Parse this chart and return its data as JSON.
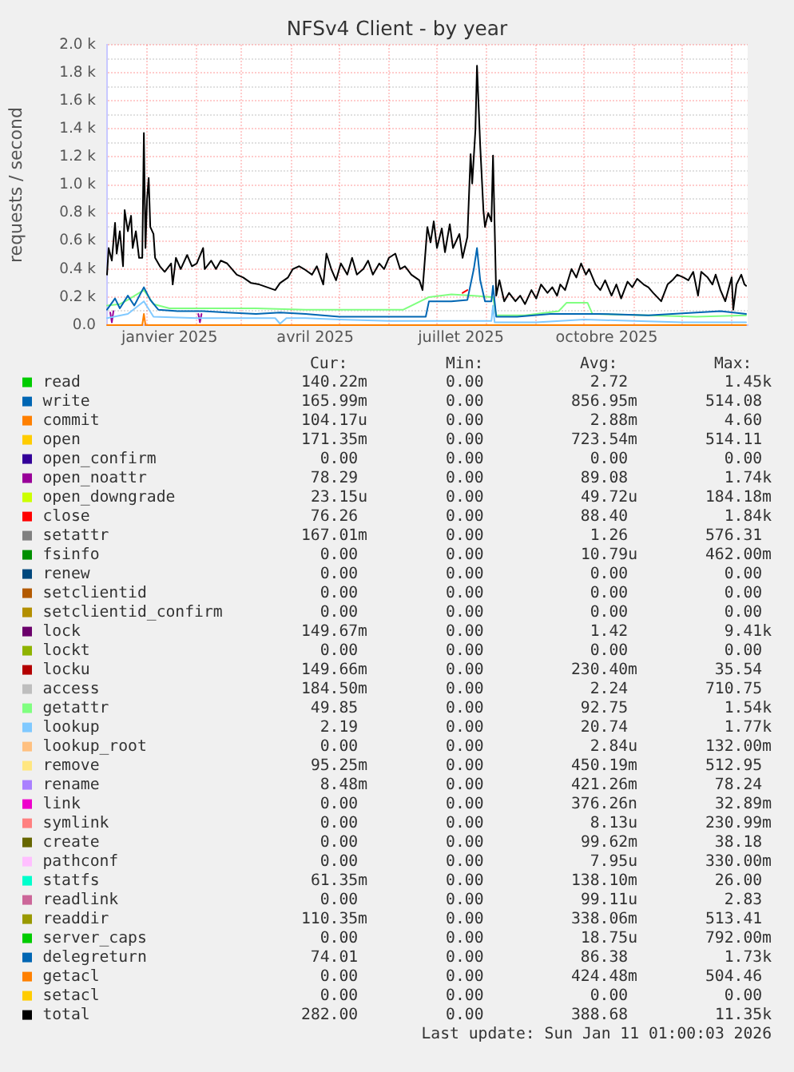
{
  "chart_data": {
    "type": "line",
    "title": "NFSv4 Client - by year",
    "ylabel": "requests / second",
    "xlim": [
      "2024-12-07",
      "2026-01-11"
    ],
    "xticks": [
      {
        "value": "2025-01-01",
        "label": null
      },
      {
        "value": "2025-01-15",
        "label": "janvier 2025"
      },
      {
        "value": "2025-02-01",
        "label": null
      },
      {
        "value": "2025-03-01",
        "label": null
      },
      {
        "value": "2025-04-01",
        "label": null
      },
      {
        "value": "2025-04-16",
        "label": "avril 2025"
      },
      {
        "value": "2025-05-01",
        "label": null
      },
      {
        "value": "2025-06-01",
        "label": null
      },
      {
        "value": "2025-07-01",
        "label": null
      },
      {
        "value": "2025-07-16",
        "label": "juillet 2025"
      },
      {
        "value": "2025-08-01",
        "label": null
      },
      {
        "value": "2025-09-01",
        "label": null
      },
      {
        "value": "2025-10-01",
        "label": null
      },
      {
        "value": "2025-10-15",
        "label": "octobre 2025"
      },
      {
        "value": "2025-11-01",
        "label": null
      },
      {
        "value": "2025-12-01",
        "label": null
      },
      {
        "value": "2026-01-01",
        "label": null
      }
    ],
    "ylim": [
      0,
      2000
    ],
    "yticks": [
      {
        "value": 0,
        "label": "0.0"
      },
      {
        "value": 100,
        "label": null
      },
      {
        "value": 200,
        "label": "0.2 k"
      },
      {
        "value": 300,
        "label": null
      },
      {
        "value": 400,
        "label": "0.4 k"
      },
      {
        "value": 500,
        "label": null
      },
      {
        "value": 600,
        "label": "0.6 k"
      },
      {
        "value": 700,
        "label": null
      },
      {
        "value": 800,
        "label": "0.8 k"
      },
      {
        "value": 900,
        "label": null
      },
      {
        "value": 1000,
        "label": "1.0 k"
      },
      {
        "value": 1100,
        "label": null
      },
      {
        "value": 1200,
        "label": "1.2 k"
      },
      {
        "value": 1300,
        "label": null
      },
      {
        "value": 1400,
        "label": "1.4 k"
      },
      {
        "value": 1500,
        "label": null
      },
      {
        "value": 1600,
        "label": "1.6 k"
      },
      {
        "value": 1700,
        "label": null
      },
      {
        "value": 1800,
        "label": "1.8 k"
      },
      {
        "value": 1900,
        "label": null
      },
      {
        "value": 2000,
        "label": "2.0 k"
      }
    ],
    "grid": true,
    "legend": "bottom",
    "marker": "none",
    "series": [
      {
        "name": "read",
        "color": "#00cc00"
      },
      {
        "name": "write",
        "color": "#0066b3"
      },
      {
        "name": "commit",
        "color": "#ff8000"
      },
      {
        "name": "open",
        "color": "#ffcc00"
      },
      {
        "name": "open_confirm",
        "color": "#330099"
      },
      {
        "name": "open_noattr",
        "color": "#990099",
        "x": [
          "2024-12-09",
          "2024-12-10",
          "2024-12-11",
          "2025-01-20",
          "2025-02-02",
          "2025-02-03",
          "2025-02-04"
        ],
        "values": [
          90,
          20,
          100,
          null,
          80,
          20,
          80
        ]
      },
      {
        "name": "open_downgrade",
        "color": "#ccff00"
      },
      {
        "name": "close",
        "color": "#ff0000",
        "x": [
          "2025-07-17",
          "2025-07-20"
        ],
        "values": [
          230,
          250
        ]
      },
      {
        "name": "setattr",
        "color": "#808080"
      },
      {
        "name": "fsinfo",
        "color": "#008f00"
      },
      {
        "name": "renew",
        "color": "#00487d"
      },
      {
        "name": "setclientid",
        "color": "#b35a00"
      },
      {
        "name": "setclientid_confirm",
        "color": "#b38f00"
      },
      {
        "name": "lock",
        "color": "#6b006b"
      },
      {
        "name": "lockt",
        "color": "#8fb300"
      },
      {
        "name": "locku",
        "color": "#b30000"
      },
      {
        "name": "access",
        "color": "#bebebe"
      },
      {
        "name": "getattr",
        "color": "#80ff80",
        "x": [
          "2024-12-07",
          "2024-12-15",
          "2024-12-20",
          "2024-12-30",
          "2025-01-05",
          "2025-01-15",
          "2025-02-10",
          "2025-03-10",
          "2025-04-10",
          "2025-05-10",
          "2025-06-10",
          "2025-06-26",
          "2025-07-10",
          "2025-07-24",
          "2025-08-05",
          "2025-08-07",
          "2025-08-25",
          "2025-09-15",
          "2025-09-20",
          "2025-10-03",
          "2025-10-06",
          "2025-11-10",
          "2025-12-10",
          "2026-01-10"
        ],
        "values": [
          140,
          150,
          180,
          250,
          150,
          120,
          120,
          120,
          110,
          110,
          110,
          200,
          220,
          210,
          200,
          70,
          70,
          100,
          160,
          160,
          80,
          70,
          60,
          70
        ]
      },
      {
        "name": "lookup",
        "color": "#80c9ff",
        "x": [
          "2024-12-07",
          "2024-12-20",
          "2024-12-30",
          "2025-01-05",
          "2025-02-01",
          "2025-03-01",
          "2025-03-22",
          "2025-03-25",
          "2025-03-29",
          "2025-04-10",
          "2025-05-01",
          "2025-06-01",
          "2025-07-01",
          "2025-08-04",
          "2025-08-05",
          "2025-08-06",
          "2025-09-01",
          "2025-10-01",
          "2025-11-01",
          "2025-12-01",
          "2026-01-10"
        ],
        "values": [
          50,
          80,
          170,
          60,
          50,
          50,
          50,
          10,
          50,
          50,
          40,
          30,
          30,
          30,
          140,
          20,
          20,
          40,
          30,
          20,
          20
        ]
      },
      {
        "name": "lookup_root",
        "color": "#ffc080"
      },
      {
        "name": "remove",
        "color": "#ffe680"
      },
      {
        "name": "rename",
        "color": "#aa80ff"
      },
      {
        "name": "link",
        "color": "#ee00cc"
      },
      {
        "name": "symlink",
        "color": "#ff8080"
      },
      {
        "name": "create",
        "color": "#666600"
      },
      {
        "name": "pathconf",
        "color": "#ffbfff"
      },
      {
        "name": "statfs",
        "color": "#00ffcc"
      },
      {
        "name": "readlink",
        "color": "#cc6699"
      },
      {
        "name": "readdir",
        "color": "#999900"
      },
      {
        "name": "server_caps",
        "color": "#00cc00"
      },
      {
        "name": "delegreturn",
        "color": "#0066b3",
        "x": [
          "2024-12-07",
          "2024-12-12",
          "2024-12-15",
          "2024-12-20",
          "2024-12-24",
          "2024-12-30",
          "2025-01-03",
          "2025-01-08",
          "2025-01-20",
          "2025-02-05",
          "2025-02-20",
          "2025-03-10",
          "2025-03-25",
          "2025-04-10",
          "2025-05-01",
          "2025-05-20",
          "2025-06-10",
          "2025-06-24",
          "2025-06-26",
          "2025-07-10",
          "2025-07-20",
          "2025-07-24",
          "2025-07-26",
          "2025-07-28",
          "2025-07-31",
          "2025-08-04",
          "2025-08-05",
          "2025-08-07",
          "2025-08-20",
          "2025-09-10",
          "2025-10-10",
          "2025-11-10",
          "2025-12-10",
          "2025-12-25",
          "2026-01-10"
        ],
        "values": [
          110,
          190,
          120,
          210,
          140,
          270,
          180,
          110,
          100,
          100,
          90,
          80,
          90,
          80,
          60,
          60,
          60,
          60,
          170,
          170,
          180,
          400,
          550,
          320,
          170,
          170,
          280,
          60,
          60,
          80,
          80,
          70,
          90,
          100,
          80
        ]
      },
      {
        "name": "getacl",
        "color": "#ff8000",
        "x": [
          "2024-12-07",
          "2024-12-29",
          "2024-12-30",
          "2024-12-31",
          "2026-01-10"
        ],
        "values": [
          0,
          0,
          80,
          0,
          0
        ]
      },
      {
        "name": "setacl",
        "color": "#ffcc00"
      },
      {
        "name": "total",
        "color": "#000000",
        "x": [
          "2024-12-07",
          "2024-12-08",
          "2024-12-10",
          "2024-12-12",
          "2024-12-13",
          "2024-12-15",
          "2024-12-17",
          "2024-12-18",
          "2024-12-20",
          "2024-12-22",
          "2024-12-23",
          "2024-12-25",
          "2024-12-27",
          "2024-12-29",
          "2024-12-30",
          "2024-12-31",
          "2025-01-01",
          "2025-01-02",
          "2025-01-03",
          "2025-01-05",
          "2025-01-06",
          "2025-01-09",
          "2025-01-12",
          "2025-01-16",
          "2025-01-17",
          "2025-01-19",
          "2025-01-22",
          "2025-01-26",
          "2025-01-29",
          "2025-02-01",
          "2025-02-05",
          "2025-02-06",
          "2025-02-10",
          "2025-02-13",
          "2025-02-16",
          "2025-02-20",
          "2025-02-23",
          "2025-02-26",
          "2025-03-02",
          "2025-03-07",
          "2025-03-12",
          "2025-03-17",
          "2025-03-22",
          "2025-03-25",
          "2025-03-30",
          "2025-04-02",
          "2025-04-06",
          "2025-04-09",
          "2025-04-14",
          "2025-04-17",
          "2025-04-21",
          "2025-04-23",
          "2025-04-26",
          "2025-04-29",
          "2025-05-02",
          "2025-05-06",
          "2025-05-09",
          "2025-05-12",
          "2025-05-16",
          "2025-05-19",
          "2025-05-22",
          "2025-05-26",
          "2025-05-29",
          "2025-06-01",
          "2025-06-05",
          "2025-06-08",
          "2025-06-11",
          "2025-06-15",
          "2025-06-20",
          "2025-06-22",
          "2025-06-25",
          "2025-06-27",
          "2025-06-29",
          "2025-07-01",
          "2025-07-04",
          "2025-07-06",
          "2025-07-09",
          "2025-07-11",
          "2025-07-15",
          "2025-07-17",
          "2025-07-20",
          "2025-07-22",
          "2025-07-23",
          "2025-07-25",
          "2025-07-26",
          "2025-07-28",
          "2025-07-30",
          "2025-07-31",
          "2025-08-02",
          "2025-08-04",
          "2025-08-05",
          "2025-08-07",
          "2025-08-09",
          "2025-08-12",
          "2025-08-15",
          "2025-08-19",
          "2025-08-22",
          "2025-08-25",
          "2025-08-29",
          "2025-09-01",
          "2025-09-04",
          "2025-09-08",
          "2025-09-11",
          "2025-09-14",
          "2025-09-16",
          "2025-09-19",
          "2025-09-23",
          "2025-09-26",
          "2025-09-29",
          "2025-10-02",
          "2025-10-04",
          "2025-10-08",
          "2025-10-11",
          "2025-10-14",
          "2025-10-18",
          "2025-10-21",
          "2025-10-24",
          "2025-10-28",
          "2025-10-31",
          "2025-11-03",
          "2025-11-07",
          "2025-11-10",
          "2025-11-13",
          "2025-11-18",
          "2025-11-22",
          "2025-11-25",
          "2025-11-28",
          "2025-12-02",
          "2025-12-05",
          "2025-12-08",
          "2025-12-11",
          "2025-12-13",
          "2025-12-17",
          "2025-12-20",
          "2025-12-22",
          "2025-12-25",
          "2025-12-28",
          "2026-01-01",
          "2026-01-02",
          "2026-01-04",
          "2026-01-07",
          "2026-01-09",
          "2026-01-10"
        ],
        "values": [
          360,
          550,
          460,
          730,
          510,
          670,
          420,
          820,
          670,
          780,
          550,
          670,
          480,
          480,
          1370,
          550,
          900,
          1050,
          700,
          650,
          480,
          420,
          380,
          440,
          290,
          480,
          400,
          500,
          420,
          440,
          550,
          400,
          460,
          400,
          460,
          440,
          400,
          360,
          340,
          300,
          290,
          270,
          250,
          300,
          340,
          400,
          420,
          400,
          360,
          420,
          290,
          510,
          400,
          320,
          440,
          360,
          480,
          360,
          400,
          460,
          360,
          440,
          400,
          480,
          510,
          400,
          420,
          360,
          320,
          250,
          700,
          590,
          740,
          550,
          690,
          520,
          720,
          550,
          650,
          480,
          630,
          1220,
          1010,
          1390,
          1850,
          1280,
          820,
          700,
          800,
          740,
          1210,
          210,
          320,
          170,
          230,
          170,
          210,
          150,
          250,
          190,
          290,
          230,
          270,
          210,
          290,
          250,
          400,
          340,
          440,
          360,
          400,
          290,
          250,
          320,
          210,
          290,
          190,
          310,
          270,
          330,
          290,
          270,
          230,
          170,
          290,
          320,
          360,
          340,
          320,
          380,
          210,
          380,
          340,
          290,
          360,
          250,
          170,
          340,
          110,
          290,
          360,
          290,
          280
        ]
      }
    ],
    "annotations": [
      "Cur:",
      "Min:",
      "Avg:",
      "Max:",
      "140.22m",
      "0.00",
      "2.72",
      "1.45k",
      "165.99m",
      "0.00",
      "856.95m",
      "514.08",
      "104.17u",
      "0.00",
      "2.88m",
      "4.60",
      "171.35m",
      "0.00",
      "723.54m",
      "514.11",
      "0.00",
      "0.00",
      "0.00",
      "0.00",
      "78.29",
      "0.00",
      "89.08",
      "1.74k",
      "23.15u",
      "0.00",
      "49.72u",
      "184.18m",
      "76.26",
      "0.00",
      "88.40",
      "1.84k",
      "167.01m",
      "0.00",
      "1.26",
      "576.31",
      "0.00",
      "0.00",
      "10.79u",
      "462.00m",
      "0.00",
      "0.00",
      "0.00",
      "0.00",
      "0.00",
      "0.00",
      "0.00",
      "0.00",
      "0.00",
      "0.00",
      "0.00",
      "0.00",
      "149.67m",
      "0.00",
      "1.42",
      "9.41k",
      "0.00",
      "0.00",
      "0.00",
      "0.00",
      "149.66m",
      "0.00",
      "230.40m",
      "35.54",
      "184.50m",
      "0.00",
      "2.24",
      "710.75",
      "49.85",
      "0.00",
      "92.75",
      "1.54k",
      "2.19",
      "0.00",
      "20.74",
      "1.77k",
      "0.00",
      "0.00",
      "2.84u",
      "132.00m",
      "95.25m",
      "0.00",
      "450.19m",
      "512.95",
      "8.48m",
      "0.00",
      "421.26m",
      "78.24",
      "0.00",
      "0.00",
      "376.26n",
      "32.89m",
      "0.00",
      "0.00",
      "8.13u",
      "230.99m",
      "0.00",
      "0.00",
      "99.62m",
      "38.18",
      "0.00",
      "0.00",
      "7.95u",
      "330.00m",
      "61.35m",
      "0.00",
      "138.10m",
      "26.00",
      "0.00",
      "0.00",
      "99.11u",
      "2.83",
      "110.35m",
      "0.00",
      "338.06m",
      "513.41",
      "0.00",
      "0.00",
      "18.75u",
      "792.00m",
      "74.01",
      "0.00",
      "86.38",
      "1.73k",
      "0.00",
      "0.00",
      "424.48m",
      "504.46",
      "0.00",
      "0.00",
      "0.00",
      "0.00",
      "282.00",
      "0.00",
      "388.68",
      "11.35k",
      "Last update: Sun Jan 11 01:00:03 2026"
    ]
  }
}
